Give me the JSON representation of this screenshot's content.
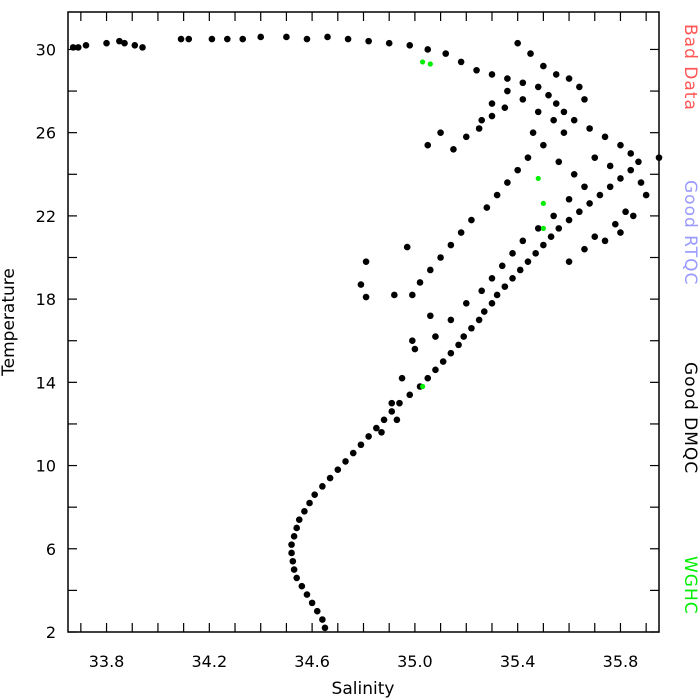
{
  "chart_data": {
    "type": "scatter",
    "title": "",
    "xlabel": "Salinity",
    "ylabel": "Temperature",
    "xlim": [
      33.65,
      35.95
    ],
    "ylim": [
      2,
      31.8
    ],
    "x_ticks": [
      "33.8",
      "34.2",
      "34.6",
      "35.0",
      "35.4",
      "35.8"
    ],
    "x_tick_values": [
      33.8,
      34.2,
      34.6,
      35.0,
      35.4,
      35.8
    ],
    "y_ticks": [
      "2",
      "6",
      "10",
      "14",
      "18",
      "22",
      "26",
      "30"
    ],
    "y_tick_values": [
      2,
      6,
      10,
      14,
      18,
      22,
      26,
      30
    ],
    "grid": false,
    "legend": [
      {
        "label": "Bad Data",
        "color": "#ff5555"
      },
      {
        "label": "Good RTQC",
        "color": "#9999ff"
      },
      {
        "label": "Good DMQC",
        "color": "#000000"
      },
      {
        "label": "WGHC",
        "color": "#00ee00"
      }
    ],
    "series": [
      {
        "name": "Good DMQC",
        "color": "#000000",
        "points": [
          [
            34.65,
            2.2
          ],
          [
            34.64,
            2.6
          ],
          [
            34.62,
            3.0
          ],
          [
            34.6,
            3.4
          ],
          [
            34.58,
            3.8
          ],
          [
            34.56,
            4.2
          ],
          [
            34.54,
            4.6
          ],
          [
            34.53,
            5.0
          ],
          [
            34.525,
            5.4
          ],
          [
            34.52,
            5.8
          ],
          [
            34.52,
            6.2
          ],
          [
            34.53,
            6.6
          ],
          [
            34.54,
            7.0
          ],
          [
            34.55,
            7.4
          ],
          [
            34.57,
            7.8
          ],
          [
            34.59,
            8.2
          ],
          [
            34.61,
            8.6
          ],
          [
            34.64,
            9.0
          ],
          [
            34.67,
            9.4
          ],
          [
            34.7,
            9.8
          ],
          [
            34.73,
            10.2
          ],
          [
            34.76,
            10.6
          ],
          [
            34.79,
            11.0
          ],
          [
            34.82,
            11.4
          ],
          [
            34.85,
            11.8
          ],
          [
            34.88,
            12.2
          ],
          [
            34.91,
            12.6
          ],
          [
            34.94,
            13.0
          ],
          [
            34.98,
            13.4
          ],
          [
            35.02,
            13.8
          ],
          [
            35.05,
            14.2
          ],
          [
            35.08,
            14.6
          ],
          [
            35.11,
            15.0
          ],
          [
            35.14,
            15.4
          ],
          [
            35.17,
            15.8
          ],
          [
            35.19,
            16.2
          ],
          [
            35.22,
            16.6
          ],
          [
            35.25,
            17.0
          ],
          [
            35.27,
            17.4
          ],
          [
            35.3,
            17.8
          ],
          [
            35.32,
            18.2
          ],
          [
            35.35,
            18.6
          ],
          [
            35.38,
            19.0
          ],
          [
            35.41,
            19.4
          ],
          [
            35.44,
            19.8
          ],
          [
            35.47,
            20.2
          ],
          [
            35.5,
            20.6
          ],
          [
            35.53,
            21.0
          ],
          [
            35.56,
            21.4
          ],
          [
            35.6,
            21.8
          ],
          [
            35.64,
            22.2
          ],
          [
            35.68,
            22.6
          ],
          [
            35.72,
            23.0
          ],
          [
            35.76,
            23.4
          ],
          [
            35.8,
            23.8
          ],
          [
            35.84,
            24.2
          ],
          [
            35.87,
            24.6
          ],
          [
            35.84,
            25.0
          ],
          [
            35.8,
            25.4
          ],
          [
            35.74,
            25.8
          ],
          [
            35.68,
            26.2
          ],
          [
            35.62,
            26.6
          ],
          [
            35.58,
            27.0
          ],
          [
            35.55,
            27.4
          ],
          [
            35.52,
            27.8
          ],
          [
            35.48,
            28.2
          ],
          [
            35.42,
            28.4
          ],
          [
            35.36,
            28.6
          ],
          [
            35.3,
            28.8
          ],
          [
            35.24,
            29.0
          ],
          [
            35.18,
            29.4
          ],
          [
            35.12,
            29.8
          ],
          [
            35.05,
            30.0
          ],
          [
            34.98,
            30.2
          ],
          [
            34.9,
            30.3
          ],
          [
            34.82,
            30.4
          ],
          [
            34.74,
            30.5
          ],
          [
            34.66,
            30.6
          ],
          [
            34.58,
            30.5
          ],
          [
            34.5,
            30.6
          ],
          [
            34.4,
            30.6
          ],
          [
            34.33,
            30.5
          ],
          [
            34.27,
            30.5
          ],
          [
            34.21,
            30.5
          ],
          [
            34.12,
            30.5
          ],
          [
            34.09,
            30.5
          ],
          [
            33.94,
            30.1
          ],
          [
            33.91,
            30.2
          ],
          [
            33.87,
            30.3
          ],
          [
            33.85,
            30.4
          ],
          [
            33.8,
            30.3
          ],
          [
            33.72,
            30.2
          ],
          [
            33.69,
            30.1
          ],
          [
            33.67,
            30.1
          ],
          [
            35.4,
            30.3
          ],
          [
            35.45,
            29.8
          ],
          [
            35.5,
            29.2
          ],
          [
            35.55,
            28.8
          ],
          [
            35.6,
            28.6
          ],
          [
            35.64,
            28.2
          ],
          [
            35.66,
            27.6
          ],
          [
            35.35,
            27.2
          ],
          [
            35.3,
            26.8
          ],
          [
            35.25,
            26.2
          ],
          [
            35.2,
            25.8
          ],
          [
            35.15,
            25.2
          ],
          [
            35.05,
            25.4
          ],
          [
            35.1,
            26.0
          ],
          [
            35.46,
            26.0
          ],
          [
            35.5,
            25.4
          ],
          [
            35.44,
            24.8
          ],
          [
            35.4,
            24.2
          ],
          [
            35.36,
            23.6
          ],
          [
            35.32,
            23.0
          ],
          [
            35.28,
            22.4
          ],
          [
            35.22,
            21.8
          ],
          [
            35.18,
            21.2
          ],
          [
            35.14,
            20.6
          ],
          [
            35.1,
            20.0
          ],
          [
            35.06,
            19.4
          ],
          [
            35.02,
            18.8
          ],
          [
            34.99,
            18.2
          ],
          [
            35.56,
            24.6
          ],
          [
            35.62,
            24.0
          ],
          [
            35.66,
            23.4
          ],
          [
            35.6,
            22.8
          ],
          [
            35.54,
            22.0
          ],
          [
            35.48,
            21.4
          ],
          [
            35.42,
            20.8
          ],
          [
            35.38,
            20.2
          ],
          [
            35.34,
            19.6
          ],
          [
            35.3,
            19.0
          ],
          [
            35.26,
            18.4
          ],
          [
            35.2,
            17.8
          ],
          [
            35.14,
            17.0
          ],
          [
            35.08,
            16.2
          ],
          [
            35.7,
            24.8
          ],
          [
            35.76,
            24.4
          ],
          [
            35.82,
            22.2
          ],
          [
            35.78,
            21.6
          ],
          [
            35.7,
            21.0
          ],
          [
            35.66,
            20.4
          ],
          [
            35.6,
            19.8
          ],
          [
            34.97,
            20.5
          ],
          [
            34.81,
            19.8
          ],
          [
            34.79,
            18.7
          ],
          [
            34.81,
            18.1
          ],
          [
            34.92,
            18.2
          ],
          [
            35.26,
            26.6
          ],
          [
            35.3,
            27.4
          ],
          [
            35.36,
            28.0
          ],
          [
            35.42,
            27.6
          ],
          [
            35.48,
            27.0
          ],
          [
            35.54,
            26.6
          ],
          [
            35.58,
            26.0
          ],
          [
            35.95,
            24.8
          ],
          [
            35.88,
            23.6
          ],
          [
            35.9,
            23.0
          ],
          [
            35.85,
            22.0
          ],
          [
            35.8,
            21.2
          ],
          [
            35.74,
            20.8
          ],
          [
            34.91,
            13.0
          ],
          [
            34.95,
            14.2
          ],
          [
            35.0,
            15.6
          ],
          [
            35.06,
            17.2
          ],
          [
            34.99,
            16.0
          ],
          [
            34.93,
            12.2
          ],
          [
            34.87,
            11.6
          ]
        ]
      },
      {
        "name": "WGHC",
        "color": "#00ee00",
        "points": [
          [
            35.03,
            29.4
          ],
          [
            35.06,
            29.3
          ],
          [
            35.48,
            23.8
          ],
          [
            35.5,
            22.6
          ],
          [
            35.5,
            21.4
          ],
          [
            35.03,
            13.8
          ]
        ]
      }
    ]
  }
}
